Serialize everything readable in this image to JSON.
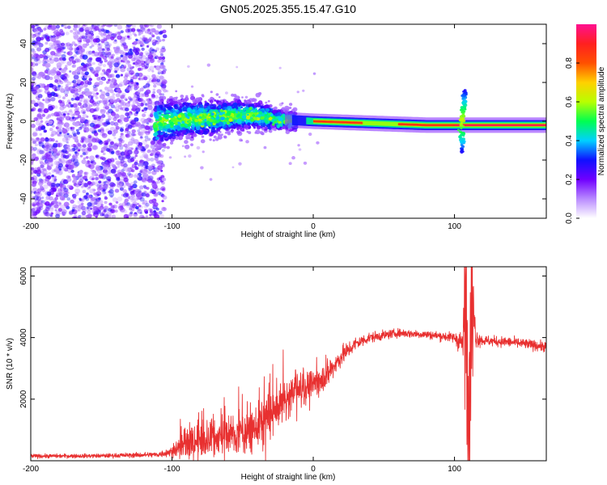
{
  "chart_data": [
    {
      "type": "heatmap",
      "title": "GN05.2025.355.15.47.G10",
      "xlabel": "Height of straight line (km)",
      "ylabel": "Frequency (Hz)",
      "xlim": [
        -200,
        165
      ],
      "ylim": [
        -50,
        50
      ],
      "xticks": [
        -200,
        -100,
        0,
        100
      ],
      "yticks": [
        -40,
        -20,
        0,
        20,
        40
      ],
      "colorbar": {
        "label": "Normalized spectral amplitude",
        "range": [
          0.0,
          1.0
        ],
        "ticks": [
          0.0,
          0.2,
          0.4,
          0.6,
          0.8
        ],
        "tick_labels": [
          "0.0",
          "0.2",
          "0.4",
          "0.6",
          "0.8"
        ],
        "colors": [
          "#ffffff",
          "#b98aff",
          "#7000ff",
          "#1010ff",
          "#00d0ff",
          "#00ff50",
          "#b8ff00",
          "#ffd000",
          "#ff5000",
          "#ff2020",
          "#ff1090"
        ]
      },
      "features": {
        "noise_region_x": [
          -200,
          -105
        ],
        "carrier_center_hz": [
          [
            -110,
            0
          ],
          [
            -80,
            1.5
          ],
          [
            -55,
            3
          ],
          [
            -40,
            3
          ],
          [
            -25,
            1
          ],
          [
            0,
            0
          ],
          [
            40,
            -1
          ],
          [
            80,
            -2
          ],
          [
            165,
            -2
          ]
        ],
        "spike_x": 105
      }
    },
    {
      "type": "line",
      "title": "",
      "xlabel": "Height of straight line (km)",
      "ylabel": "SNR (10 * v/v)",
      "xlim": [
        -200,
        165
      ],
      "ylim": [
        0,
        6300
      ],
      "xticks": [
        -200,
        -100,
        0,
        100
      ],
      "yticks": [
        2000,
        4000,
        6000
      ],
      "series": [
        {
          "name": "SNR",
          "color": "#e83030",
          "x": [
            -200,
            -150,
            -110,
            -100,
            -90,
            -80,
            -70,
            -60,
            -50,
            -40,
            -30,
            -20,
            -10,
            0,
            10,
            20,
            30,
            40,
            60,
            80,
            100,
            106,
            108,
            110,
            112,
            115,
            120,
            140,
            165
          ],
          "y": [
            150,
            160,
            200,
            300,
            550,
            650,
            750,
            850,
            900,
            1100,
            1500,
            2000,
            2300,
            2500,
            2800,
            3400,
            3800,
            4000,
            4150,
            4100,
            4000,
            3800,
            5500,
            200,
            5800,
            4000,
            3900,
            3850,
            3700
          ],
          "noise_amplitude": [
            60,
            60,
            80,
            150,
            500,
            550,
            550,
            500,
            600,
            650,
            700,
            600,
            500,
            400,
            350,
            300,
            200,
            150,
            120,
            120,
            150,
            500,
            1500,
            1500,
            1500,
            300,
            150,
            150,
            150
          ]
        }
      ]
    }
  ]
}
